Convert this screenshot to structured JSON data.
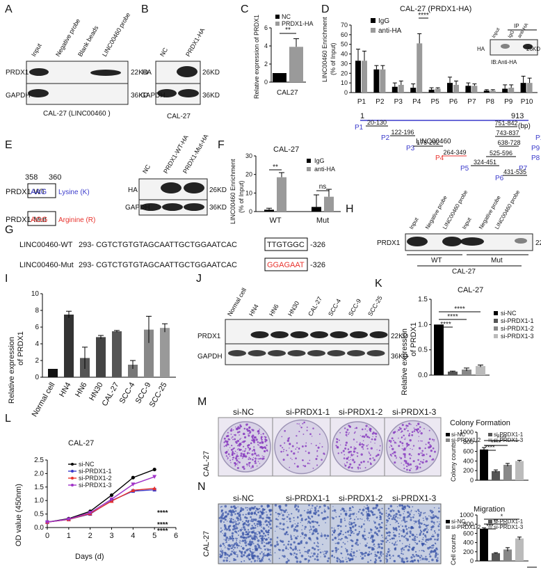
{
  "panel_letters": [
    "A",
    "B",
    "C",
    "D",
    "E",
    "F",
    "G",
    "H",
    "I",
    "J",
    "K",
    "L",
    "M",
    "N"
  ],
  "colors": {
    "black": "#000000",
    "gray": "#9a9a9a",
    "red": "#e8322c",
    "blue": "#3a3acb",
    "purple": "#a032c8",
    "dish": "#d8d2e6",
    "stain": "#8a3ec0",
    "trans_bg": "#c7cfe2",
    "trans_cell": "#3b55a8"
  },
  "A": {
    "lanes": [
      "Input",
      "Negative probe",
      "Blank beads",
      "LINC00460 probe"
    ],
    "rows": [
      "PRDX1",
      "GAPDH"
    ],
    "kd": [
      "22KD",
      "36KD"
    ],
    "caption": "CAL-27 (LINC00460 )"
  },
  "B": {
    "lanes": [
      "NC",
      "PRDX1-HA"
    ],
    "rows": [
      "HA",
      "GAPDH"
    ],
    "kd": [
      "26KD",
      "36KD"
    ],
    "caption": "CAL-27"
  },
  "C": {
    "chart_data": {
      "type": "bar",
      "categories": [
        "CAL27"
      ],
      "series": [
        {
          "name": "NC",
          "values": [
            1.0
          ]
        },
        {
          "name": "PRDX1-HA",
          "values": [
            3.9
          ]
        }
      ],
      "errors": [
        0,
        0.9
      ],
      "ylabel": "Relative expression of PRDX1",
      "ylim": [
        0,
        6
      ],
      "yticks": [
        "0",
        "2",
        "4",
        "6"
      ],
      "sig": "**",
      "legend": "top-left"
    }
  },
  "D": {
    "chart_data": {
      "type": "bar",
      "title": "CAL-27 (PRDX1-HA)",
      "categories": [
        "P1",
        "P2",
        "P3",
        "P4",
        "P5",
        "P6",
        "P7",
        "P8",
        "P9",
        "P10"
      ],
      "series": [
        {
          "name": "IgG",
          "values": [
            33,
            24,
            6,
            5,
            3,
            10,
            7,
            2,
            4,
            10
          ]
        },
        {
          "name": "anti-HA",
          "values": [
            33,
            24,
            8,
            51,
            4,
            8,
            7,
            2,
            5,
            10
          ]
        }
      ],
      "errors_igg": [
        12,
        4,
        4,
        4,
        2,
        6,
        3,
        1,
        4,
        7
      ],
      "errors_ha": [
        10,
        4,
        4,
        10,
        1,
        4,
        2,
        1,
        3,
        5
      ],
      "ylabel": "LINC00460 Enrichment (% of Input)",
      "ylim": [
        0,
        70
      ],
      "yticks": [
        "0",
        "10",
        "20",
        "30",
        "40",
        "50",
        "60",
        "70"
      ],
      "sig": "****",
      "legend": "top-left"
    },
    "inset": {
      "title": "IP",
      "lanes": [
        "Input",
        "IgG",
        "anti-HA"
      ],
      "row": "HA",
      "kd": "26KD",
      "caption": "IB:Anti-HA"
    },
    "map": {
      "start": "1",
      "end": "913",
      "unit": "(bp)",
      "gene": "LINC00460",
      "segs": [
        {
          "p": "P1",
          "r": "20-130",
          "lab": [
            510,
            182
          ],
          "range": [
            535,
            226,
            566,
            183
          ],
          "c": "blue"
        },
        {
          "p": "P2",
          "r": "122-196",
          "lab": [
            548,
            197
          ],
          "range": [
            561,
            210,
            602,
            197
          ],
          "c": "blue"
        },
        {
          "p": "P3",
          "r": "176-292",
          "lab": [
            584,
            212
          ],
          "range": [
            594,
            226,
            638,
            212
          ],
          "c": "blue"
        },
        {
          "p": "P4",
          "r": "264-349",
          "lab": [
            626,
            226
          ],
          "range": [
            637,
            240,
            671,
            226
          ],
          "c": "red"
        },
        {
          "p": "P5",
          "r": "324-451",
          "lab": [
            662,
            241
          ],
          "range": [
            677,
            254,
            722,
            241
          ],
          "c": "blue"
        },
        {
          "p": "P6",
          "r": "431-535",
          "lab": [
            712,
            255
          ],
          "range": [
            723,
            268,
            758,
            255
          ],
          "c": "blue"
        },
        {
          "p": "P7",
          "r": "525-596",
          "lab": [
            730,
            241
          ],
          "range": [
            756,
            226,
            780,
            241
          ],
          "c": "blue"
        },
        {
          "p": "P8",
          "r": "638-728",
          "lab": [
            752,
            226
          ],
          "range": [
            800,
            212,
            832,
            226
          ],
          "c": "blue"
        },
        {
          "p": "P9",
          "r": "743-837",
          "lab": [
            780,
            212
          ],
          "range": [
            845,
            198,
            884,
            212
          ],
          "c": "blue"
        },
        {
          "p": "P10",
          "r": "751-842",
          "lab": [
            808,
            197
          ],
          "range": [
            852,
            184,
            888,
            197
          ],
          "c": "blue"
        }
      ]
    }
  },
  "E": {
    "pos1": "358",
    "pos2": "360",
    "wt_label": "PRDX1-WT",
    "wt_codon": "AAG",
    "wt_aa": "Lysine (K)",
    "mut_label": "PRDX1-Mut",
    "mut_codon": "AGG",
    "mut_aa": "Arginine (R)",
    "lanes": [
      "NC",
      "PRDX1-WT-HA",
      "PRDX1-Mut-HA"
    ],
    "rows": [
      "HA",
      "GAPDH"
    ],
    "kd": [
      "26KD",
      "36KD"
    ]
  },
  "F": {
    "chart_data": {
      "type": "bar",
      "title": "CAL-27",
      "categories": [
        "WT",
        "Mut"
      ],
      "series": [
        {
          "name": "IgG",
          "values": [
            1.0,
            2.5
          ]
        },
        {
          "name": "anti-HA",
          "values": [
            18.5,
            8.0
          ]
        }
      ],
      "errors": [
        [
          0.8,
          2.5
        ],
        [
          6.5,
          4.0
        ]
      ],
      "ylabel": "LINC00460 Enrichment (% of Input)",
      "ylim": [
        0,
        30
      ],
      "yticks": [
        "0",
        "10",
        "20",
        "30"
      ],
      "sig": [
        "**",
        "ns"
      ],
      "legend": "top-right"
    }
  },
  "G": {
    "wt_name": "LINC00460-WT",
    "wt_pre": "293- CGTCTGTGTAGCAATTGCTGGAATCAC",
    "wt_box": "TTGTGGC",
    "wt_post": "-326",
    "mut_name": "LINC00460-Mut",
    "mut_pre": "293- CGTCTGTGTAGCAATTGCTGGAATCAC",
    "mut_box": "GGAGAAT",
    "mut_post": "-326"
  },
  "H": {
    "lanes": [
      "Input",
      "Negative probe",
      "LINC00460 probe",
      "Input",
      "Negative probe",
      "LINC00460 probe"
    ],
    "row": "PRDX1",
    "kd": "22KD",
    "group1": "WT",
    "group2": "Mut",
    "caption": "CAL-27"
  },
  "I": {
    "chart_data": {
      "type": "bar",
      "categories": [
        "Normal cell",
        "HN4",
        "HN6",
        "HN30",
        "CAL-27",
        "SCC-4",
        "SCC-9",
        "SCC-25"
      ],
      "values": [
        1.0,
        7.5,
        2.3,
        4.8,
        5.5,
        1.5,
        5.7,
        5.9
      ],
      "errors": [
        0,
        0.4,
        1.3,
        0.2,
        0.1,
        0.5,
        1.6,
        0.5
      ],
      "ylabel": "Relative expression of PRDX1",
      "ylim": [
        0,
        10
      ],
      "yticks": [
        "0",
        "2",
        "4",
        "6",
        "8",
        "10"
      ]
    }
  },
  "J": {
    "lanes": [
      "Normal cell",
      "HN4",
      "HN6",
      "HN30",
      "CAL-27",
      "SCC-4",
      "SCC-9",
      "SCC-25"
    ],
    "rows": [
      "PRDX1",
      "GAPDH"
    ],
    "kd": [
      "22KD",
      "36KD"
    ]
  },
  "K": {
    "chart_data": {
      "type": "bar",
      "title": "CAL-27",
      "categories": [
        "si-NC",
        "si-PRDX1-1",
        "si-PRDX1-2",
        "si-PRDX1-3"
      ],
      "values": [
        1.0,
        0.07,
        0.11,
        0.18
      ],
      "errors": [
        0,
        0.01,
        0.03,
        0.02
      ],
      "ylabel": "Relative expression of PRDX1",
      "ylim": [
        0,
        1.5
      ],
      "yticks": [
        "0.0",
        "0.5",
        "1.0",
        "1.5"
      ],
      "sig": "****",
      "legend": "right"
    }
  },
  "L": {
    "chart_data": {
      "type": "line",
      "title": "CAL-27",
      "x": [
        0,
        1,
        2,
        3,
        4,
        5
      ],
      "series": [
        {
          "name": "si-NC",
          "values": [
            0.2,
            0.33,
            0.6,
            1.2,
            1.85,
            2.15
          ]
        },
        {
          "name": "si-PRDX1-1",
          "values": [
            0.2,
            0.3,
            0.5,
            1.0,
            1.35,
            1.4
          ]
        },
        {
          "name": "si-PRDX1-2",
          "values": [
            0.2,
            0.3,
            0.52,
            0.98,
            1.38,
            1.45
          ]
        },
        {
          "name": "si-PRDX1-3",
          "values": [
            0.2,
            0.31,
            0.55,
            1.05,
            1.6,
            1.88
          ]
        }
      ],
      "xlabel": "Days (d)",
      "ylabel": "OD value (450nm)",
      "xlim": [
        0,
        6
      ],
      "ylim": [
        0,
        2.5
      ],
      "xticks": [
        "0",
        "1",
        "2",
        "3",
        "4",
        "5",
        "6"
      ],
      "yticks": [
        "0.0",
        "0.5",
        "1.0",
        "1.5",
        "2.0",
        "2.5"
      ],
      "sig": [
        "****",
        "****",
        "****"
      ],
      "legend": "top-left"
    }
  },
  "M": {
    "labels": [
      "si-NC",
      "si-PRDX1-1",
      "si-PRDX1-2",
      "si-PRDX1-3"
    ],
    "density": [
      1.0,
      0.28,
      0.5,
      0.62
    ],
    "side": "CAL-27",
    "chart_data": {
      "type": "bar",
      "title": "Colony Formation",
      "categories": [
        "si-NC",
        "si-PRDX1-1",
        "si-PRDX1-2",
        "si-PRDX1-3"
      ],
      "values": [
        640,
        190,
        320,
        400
      ],
      "errors": [
        40,
        25,
        30,
        15
      ],
      "ylabel": "Colony counts",
      "ylim": [
        0,
        1000
      ],
      "yticks": [
        "0",
        "200",
        "400",
        "600",
        "800",
        "1000"
      ],
      "sig": [
        "****",
        "****",
        "****"
      ],
      "legend": "top"
    }
  },
  "N": {
    "labels": [
      "si-NC",
      "si-PRDX1-1",
      "si-PRDX1-2",
      "si-PRDX1-3"
    ],
    "density": [
      1.0,
      0.5,
      0.62,
      0.7
    ],
    "side": "CAL-27",
    "chart_data": {
      "type": "bar",
      "title": "Migration",
      "categories": [
        "si-NC",
        "si-PRDX1-1",
        "si-PRDX1-2",
        "si-PRDX1-3"
      ],
      "values": [
        700,
        170,
        250,
        490
      ],
      "errors": [
        20,
        10,
        40,
        30
      ],
      "ylabel": "Cell counts",
      "ylim": [
        0,
        1000
      ],
      "yticks": [
        "0",
        "200",
        "400",
        "600",
        "800",
        "1000"
      ],
      "sig": [
        "***",
        "**",
        "*"
      ],
      "legend": "top"
    }
  }
}
